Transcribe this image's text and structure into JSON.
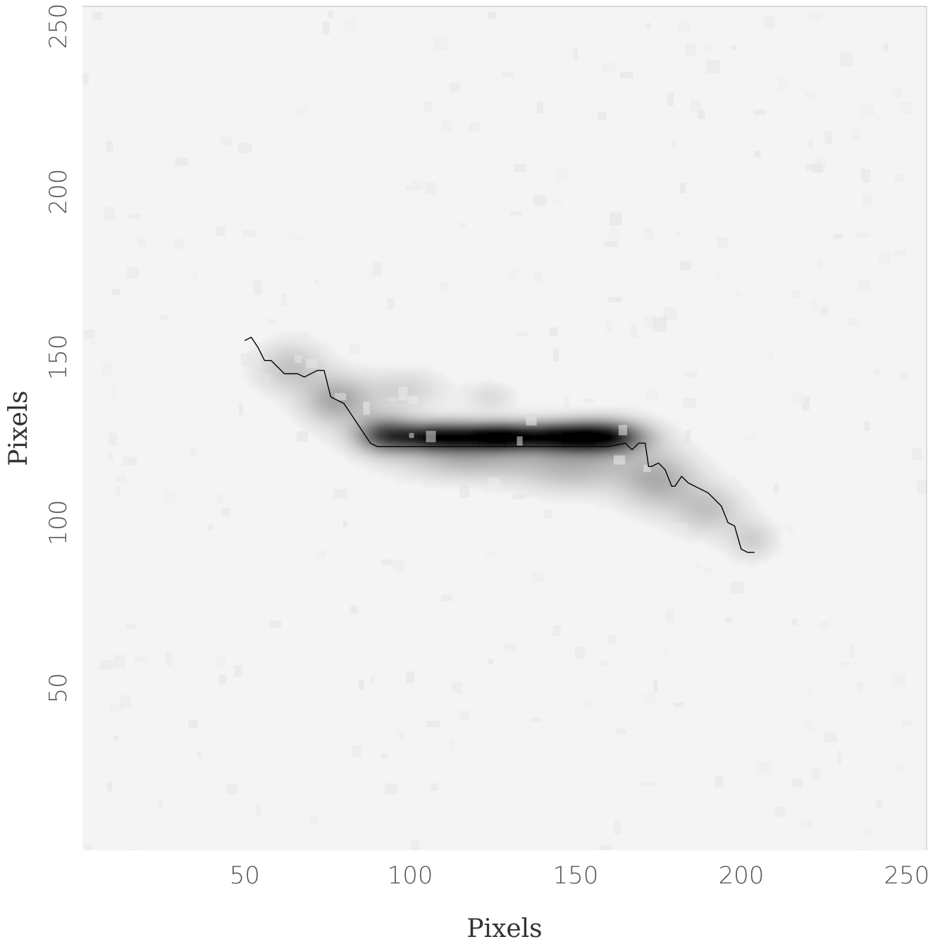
{
  "chart_data": {
    "type": "heatmap",
    "title": "",
    "xlabel": "Pixels",
    "ylabel": "Pixels",
    "xlim": [
      1,
      256
    ],
    "ylim": [
      1,
      256
    ],
    "x_ticks": [
      50,
      100,
      150,
      200,
      250
    ],
    "y_ticks": [
      50,
      100,
      150,
      200,
      250
    ],
    "grid": false,
    "colormap": "grayscale (white = low, black = high)",
    "background_color": "#f4f4f4",
    "line_color": "#000000",
    "bright_blobs": [
      {
        "x": 110,
        "y": 126,
        "sx": 12,
        "sy": 3.0,
        "amp": 1.0
      },
      {
        "x": 145,
        "y": 126,
        "sx": 12,
        "sy": 3.0,
        "amp": 1.0
      },
      {
        "x": 127,
        "y": 126,
        "sx": 6,
        "sy": 2.5,
        "amp": 0.55
      },
      {
        "x": 160,
        "y": 126,
        "sx": 8,
        "sy": 3.5,
        "amp": 0.55
      },
      {
        "x": 92,
        "y": 127,
        "sx": 6,
        "sy": 4,
        "amp": 0.45
      },
      {
        "x": 78,
        "y": 137,
        "sx": 7,
        "sy": 5,
        "amp": 0.32
      },
      {
        "x": 64,
        "y": 147,
        "sx": 7,
        "sy": 5,
        "amp": 0.2
      },
      {
        "x": 118,
        "y": 119,
        "sx": 14,
        "sy": 4,
        "amp": 0.25
      },
      {
        "x": 150,
        "y": 117,
        "sx": 12,
        "sy": 5,
        "amp": 0.25
      },
      {
        "x": 175,
        "y": 113,
        "sx": 8,
        "sy": 6,
        "amp": 0.28
      },
      {
        "x": 190,
        "y": 104,
        "sx": 7,
        "sy": 5,
        "amp": 0.2
      },
      {
        "x": 203,
        "y": 95,
        "sx": 5,
        "sy": 4,
        "amp": 0.15
      },
      {
        "x": 98,
        "y": 140,
        "sx": 8,
        "sy": 4,
        "amp": 0.14
      },
      {
        "x": 124,
        "y": 138,
        "sx": 5,
        "sy": 3,
        "amp": 0.1
      }
    ],
    "trace": {
      "x": [
        50,
        52,
        54,
        56,
        58,
        60,
        62,
        64,
        66,
        68,
        70,
        72,
        74,
        76,
        78,
        80,
        82,
        84,
        86,
        88,
        90,
        92,
        95,
        100,
        105,
        110,
        115,
        120,
        125,
        130,
        135,
        140,
        145,
        150,
        155,
        160,
        165,
        167,
        169,
        171,
        172,
        173,
        175,
        177,
        179,
        180,
        182,
        184,
        186,
        188,
        190,
        192,
        194,
        196,
        198,
        200,
        202,
        204
      ],
      "y": [
        155,
        156,
        153,
        149,
        149,
        147,
        145,
        145,
        145,
        144,
        145,
        146,
        146,
        138,
        137,
        136,
        133,
        130,
        127,
        124,
        123,
        123,
        123,
        123,
        123,
        123,
        123,
        123,
        123,
        123,
        123,
        123,
        123,
        123,
        123,
        123,
        124,
        122,
        124,
        124,
        117,
        117,
        118,
        116,
        111,
        111,
        114,
        112,
        111,
        110,
        109,
        107,
        105,
        100,
        99,
        92,
        91,
        91
      ]
    }
  }
}
